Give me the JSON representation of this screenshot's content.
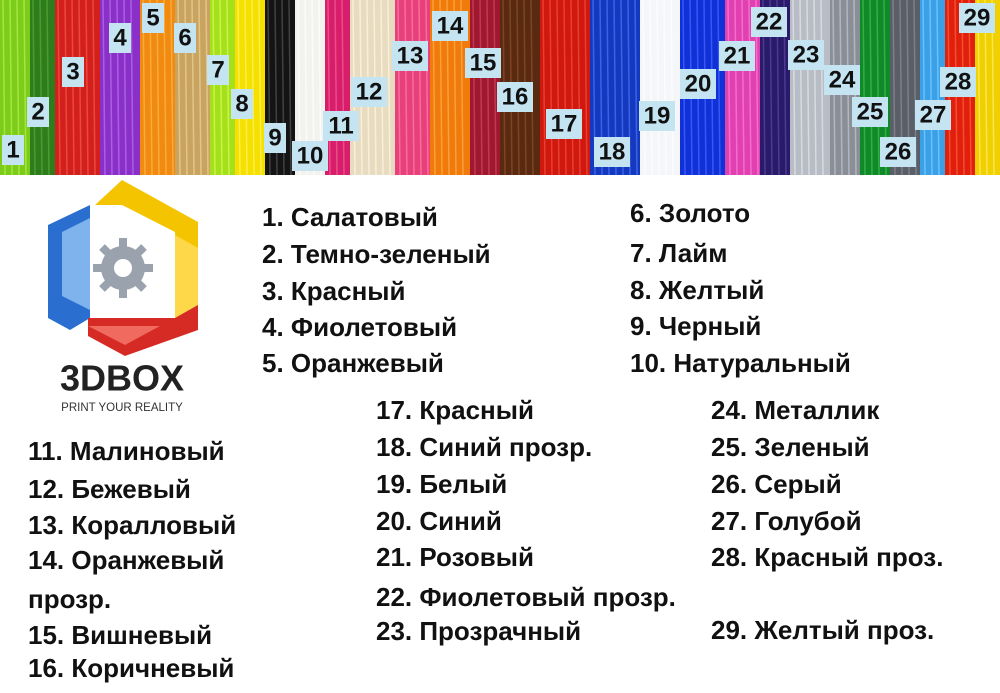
{
  "strip_labels": [
    "1",
    "2",
    "3",
    "4",
    "5",
    "6",
    "7",
    "8",
    "9",
    "10",
    "11",
    "12",
    "13",
    "14",
    "15",
    "16",
    "17",
    "18",
    "19",
    "20",
    "21",
    "22",
    "23",
    "24",
    "25",
    "26",
    "27",
    "28",
    "29"
  ],
  "logo": {
    "name": "3DBOX",
    "tagline": "PRINT YOUR REALITY"
  },
  "color_list": [
    "1. Салатовый",
    "2. Темно-зеленый",
    "3. Красный",
    "4. Фиолетовый",
    "5. Оранжевый",
    "6. Золото",
    "7. Лайм",
    "8. Желтый",
    "9. Черный",
    "10. Натуральный",
    "11. Малиновый",
    "12. Бежевый",
    "13. Коралловый",
    "14. Оранжевый прозр.",
    "15. Вишневый",
    "16. Коричневый",
    "17. Красный",
    "18. Синий прозр.",
    "19. Белый",
    "20. Синий",
    "21. Розовый",
    "22. Фиолетовый прозр.",
    "23. Прозрачный",
    "24. Металлик",
    "25. Зеленый",
    "26. Серый",
    "27. Голубой",
    "28. Красный проз.",
    "29. Желтый проз."
  ]
}
